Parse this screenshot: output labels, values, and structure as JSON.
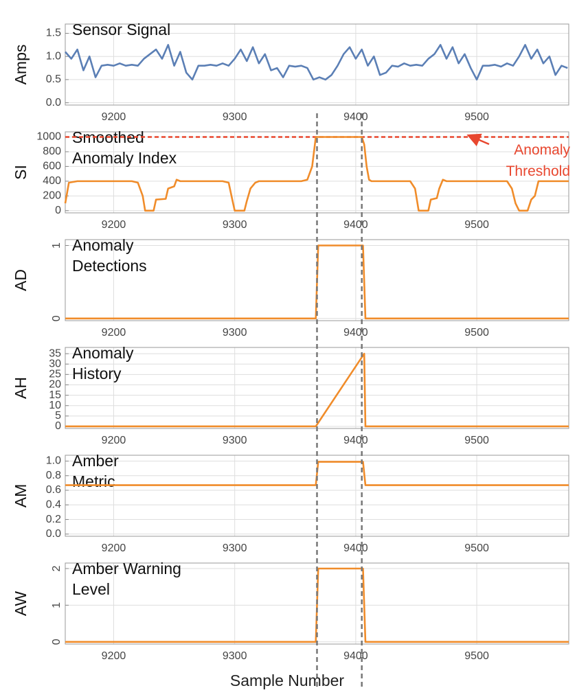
{
  "x_label": "Sample Number",
  "xlim": [
    9160,
    9576
  ],
  "xticks": [
    9200,
    9300,
    9400,
    9500
  ],
  "event_lines": [
    9368,
    9405
  ],
  "chart_data": [
    {
      "type": "line",
      "title": [
        "Sensor Signal"
      ],
      "y_label": "Amps",
      "color": "#5b7fb5",
      "grid": true,
      "ylim": [
        -0.05,
        1.7
      ],
      "yticks": [
        {
          "value": 0,
          "label": "0.0"
        },
        {
          "value": 0.5,
          "label": "0.5"
        },
        {
          "value": 1,
          "label": "1.0"
        },
        {
          "value": 1.5,
          "label": "1.5"
        }
      ],
      "x": [
        9160,
        9165,
        9170,
        9175,
        9180,
        9185,
        9190,
        9195,
        9200,
        9205,
        9210,
        9215,
        9220,
        9225,
        9230,
        9235,
        9240,
        9245,
        9250,
        9255,
        9260,
        9265,
        9270,
        9275,
        9280,
        9285,
        9290,
        9295,
        9300,
        9305,
        9310,
        9315,
        9320,
        9325,
        9330,
        9335,
        9340,
        9345,
        9350,
        9355,
        9360,
        9365,
        9370,
        9375,
        9380,
        9385,
        9390,
        9395,
        9400,
        9405,
        9410,
        9415,
        9420,
        9425,
        9430,
        9435,
        9440,
        9445,
        9450,
        9455,
        9460,
        9465,
        9470,
        9475,
        9480,
        9485,
        9490,
        9495,
        9500,
        9505,
        9510,
        9515,
        9520,
        9525,
        9530,
        9535,
        9540,
        9545,
        9550,
        9555,
        9560,
        9565,
        9570,
        9575
      ],
      "values": [
        1.1,
        0.95,
        1.15,
        0.7,
        1.0,
        0.55,
        0.8,
        0.82,
        0.8,
        0.85,
        0.8,
        0.82,
        0.8,
        0.95,
        1.05,
        1.15,
        0.95,
        1.25,
        0.8,
        1.1,
        0.65,
        0.5,
        0.8,
        0.8,
        0.82,
        0.8,
        0.85,
        0.8,
        0.95,
        1.15,
        0.9,
        1.2,
        0.85,
        1.05,
        0.7,
        0.75,
        0.55,
        0.8,
        0.78,
        0.8,
        0.75,
        0.5,
        0.55,
        0.5,
        0.6,
        0.8,
        1.05,
        1.2,
        0.95,
        1.15,
        0.8,
        1.0,
        0.6,
        0.65,
        0.8,
        0.78,
        0.85,
        0.8,
        0.82,
        0.8,
        0.95,
        1.05,
        1.25,
        0.95,
        1.2,
        0.85,
        1.05,
        0.75,
        0.5,
        0.8,
        0.8,
        0.82,
        0.78,
        0.85,
        0.8,
        1.0,
        1.25,
        0.95,
        1.15,
        0.85,
        1.0,
        0.6,
        0.8,
        0.75
      ]
    },
    {
      "type": "line",
      "title": [
        "Smoothed",
        "Anomaly Index"
      ],
      "y_label": "SI",
      "color": "#f08c2a",
      "grid": true,
      "ylim": [
        -30,
        1070
      ],
      "yticks": [
        0,
        200,
        400,
        600,
        800,
        1000
      ],
      "threshold": {
        "value": 1000,
        "color": "#e8472f",
        "label": [
          "Anomaly",
          "Threshold"
        ]
      },
      "x": [
        9160,
        9163,
        9170,
        9215,
        9220,
        9224,
        9226,
        9233,
        9235,
        9243,
        9245,
        9250,
        9252,
        9255,
        9290,
        9295,
        9298,
        9300,
        9308,
        9310,
        9313,
        9317,
        9320,
        9355,
        9360,
        9364,
        9367,
        9405,
        9407,
        9409,
        9411,
        9413,
        9445,
        9449,
        9452,
        9460,
        9462,
        9467,
        9469,
        9472,
        9475,
        9525,
        9529,
        9532,
        9535,
        9542,
        9545,
        9548,
        9551,
        9576
      ],
      "values": [
        100,
        380,
        400,
        400,
        380,
        200,
        0,
        0,
        150,
        160,
        300,
        330,
        420,
        400,
        400,
        380,
        150,
        0,
        0,
        130,
        300,
        380,
        400,
        400,
        420,
        600,
        1000,
        1000,
        900,
        600,
        420,
        400,
        400,
        300,
        0,
        0,
        150,
        170,
        300,
        420,
        400,
        400,
        300,
        100,
        0,
        0,
        150,
        200,
        400,
        400
      ]
    },
    {
      "type": "line",
      "title": [
        "Anomaly",
        "Detections"
      ],
      "y_label": "AD",
      "color": "#f08c2a",
      "grid": true,
      "ytick_rotated": true,
      "ylim": [
        -0.03,
        1.08
      ],
      "yticks": [
        0,
        1
      ],
      "x": [
        9160,
        9367,
        9369,
        9406,
        9408,
        9576
      ],
      "values": [
        0,
        0,
        1,
        1,
        0,
        0
      ]
    },
    {
      "type": "line",
      "title": [
        "Anomaly",
        "History"
      ],
      "y_label": "AH",
      "color": "#f08c2a",
      "grid": true,
      "ylim": [
        -1,
        38
      ],
      "yticks": [
        0,
        5,
        10,
        15,
        20,
        25,
        30,
        35
      ],
      "x": [
        9160,
        9367,
        9407,
        9408,
        9576
      ],
      "values": [
        0,
        0,
        35,
        0,
        0
      ]
    },
    {
      "type": "line",
      "title": [
        "Amber",
        "Metric"
      ],
      "y_label": "AM",
      "color": "#f08c2a",
      "grid": true,
      "ylim": [
        -0.03,
        1.08
      ],
      "yticks": [
        {
          "value": 0,
          "label": "0.0"
        },
        {
          "value": 0.2,
          "label": "0.2"
        },
        {
          "value": 0.4,
          "label": "0.4"
        },
        {
          "value": 0.6,
          "label": "0.6"
        },
        {
          "value": 0.8,
          "label": "0.8"
        },
        {
          "value": 1,
          "label": "1.0"
        }
      ],
      "x": [
        9160,
        9367,
        9369,
        9406,
        9408,
        9576
      ],
      "values": [
        0.67,
        0.67,
        0.99,
        0.99,
        0.67,
        0.67
      ]
    },
    {
      "type": "line",
      "title": [
        "Amber Warning",
        "Level"
      ],
      "y_label": "AW",
      "color": "#f08c2a",
      "grid": true,
      "ytick_rotated": true,
      "ylim": [
        -0.06,
        2.15
      ],
      "yticks": [
        0,
        1,
        2
      ],
      "x": [
        9160,
        9367,
        9369,
        9406,
        9408,
        9576
      ],
      "values": [
        0,
        0,
        2,
        2,
        0,
        0
      ]
    }
  ]
}
